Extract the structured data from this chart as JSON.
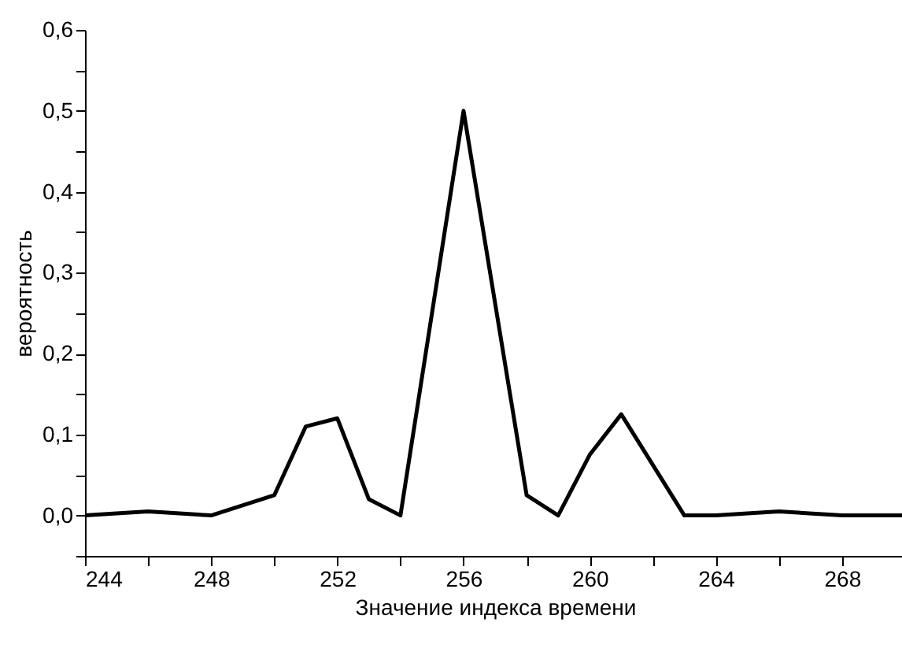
{
  "chart_data": {
    "type": "line",
    "xlabel": "Значение индекса времени",
    "ylabel": "вероятность",
    "x": [
      244,
      246,
      248,
      250,
      251,
      252,
      253,
      254,
      256,
      258,
      259,
      260,
      261,
      263,
      264,
      266,
      268,
      270
    ],
    "series": [
      {
        "color": "#000000",
        "values": [
          0,
          0.005,
          0,
          0.025,
          0.11,
          0.12,
          0.02,
          0,
          0.5,
          0.025,
          0,
          0.075,
          0.125,
          0,
          0,
          0.005,
          0,
          0
        ]
      }
    ],
    "xlim": [
      244,
      270
    ],
    "xticks": [
      244,
      {
        "value": 246,
        "label": null
      },
      248,
      {
        "value": 250,
        "label": null
      },
      252,
      {
        "value": 254,
        "label": null
      },
      256,
      {
        "value": 258,
        "label": null
      },
      260,
      {
        "value": 262,
        "label": null
      },
      264,
      {
        "value": 266,
        "label": null
      },
      268
    ],
    "ylim": [
      -0.05,
      0.6
    ],
    "yticks": [
      {
        "value": -0.05,
        "label": null
      },
      {
        "value": 0,
        "label": "0,0"
      },
      {
        "value": 0.05,
        "label": null
      },
      {
        "value": 0.1,
        "label": "0,1"
      },
      {
        "value": 0.15,
        "label": null
      },
      {
        "value": 0.2,
        "label": "0,2"
      },
      {
        "value": 0.25,
        "label": null
      },
      {
        "value": 0.3,
        "label": "0,3"
      },
      {
        "value": 0.35,
        "label": null
      },
      {
        "value": 0.4,
        "label": "0,4"
      },
      {
        "value": 0.45,
        "label": null
      },
      {
        "value": 0.5,
        "label": "0,5"
      },
      {
        "value": 0.55,
        "label": null
      },
      {
        "value": 0.6,
        "label": "0,6"
      }
    ],
    "grid": false,
    "marker": "none",
    "line_style": "solid"
  }
}
